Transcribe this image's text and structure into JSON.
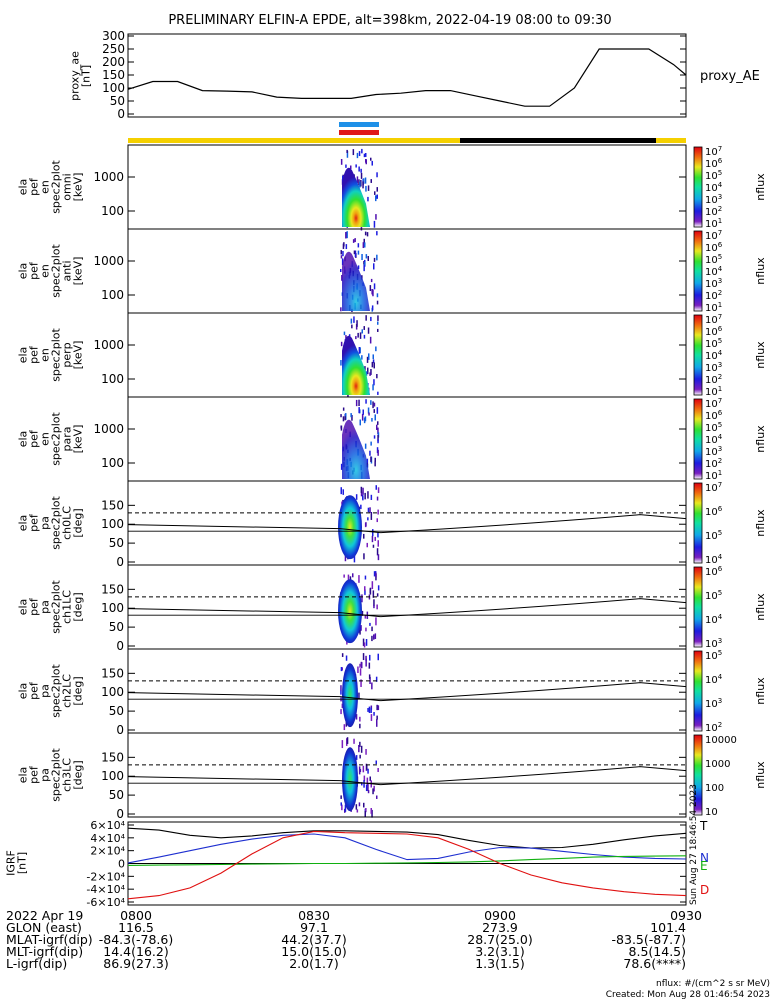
{
  "title": "PRELIMINARY ELFIN-A EPDE, alt=398km, 2022-04-19 08:00 to 09:30",
  "colors": {
    "sunlit": "#f5d000",
    "shadow": "#000000",
    "blue_bar": "#1e90e8",
    "red_bar": "#e01818",
    "trace_black": "#000000",
    "trace_blue": "#1e2fd0",
    "trace_green": "#10b010",
    "trace_red": "#e01010"
  },
  "chart_data": [
    {
      "type": "line",
      "name": "proxy_ae_panel",
      "ylabel": "proxy_ae\n[nT]",
      "label_right": "proxy_AE",
      "ylim": [
        0,
        300
      ],
      "yticks": [
        "0",
        "50",
        "100",
        "150",
        "200",
        "250",
        "300"
      ],
      "x_minutes": [
        0,
        4,
        8,
        12,
        16,
        20,
        24,
        28,
        32,
        36,
        40,
        44,
        48,
        52,
        56,
        60,
        64,
        68,
        72,
        76,
        80,
        84,
        88,
        90
      ],
      "values": [
        95,
        125,
        125,
        90,
        88,
        85,
        65,
        60,
        60,
        60,
        75,
        80,
        90,
        90,
        70,
        50,
        30,
        30,
        100,
        250,
        250,
        250,
        190,
        150
      ]
    },
    {
      "type": "heatmap",
      "name": "en_spec_omni",
      "ylabel": "ela\npef\nen\nspec2plot\nomni\n[keV]",
      "yscale": "log",
      "yticks": [
        "100",
        "1000"
      ],
      "colorbar_label": "nflux",
      "colorbar_ticks": [
        "10^1",
        "10^2",
        "10^3",
        "10^4",
        "10^5",
        "10^6",
        "10^7"
      ]
    },
    {
      "type": "heatmap",
      "name": "en_spec_anti",
      "ylabel": "ela\npef\nen\nspec2plot\nanti\n[keV]",
      "yscale": "log",
      "yticks": [
        "100",
        "1000"
      ],
      "colorbar_label": "nflux",
      "colorbar_ticks": [
        "10^1",
        "10^2",
        "10^3",
        "10^4",
        "10^5",
        "10^6",
        "10^7"
      ]
    },
    {
      "type": "heatmap",
      "name": "en_spec_perp",
      "ylabel": "ela\npef\nen\nspec2plot\nperp\n[keV]",
      "yscale": "log",
      "yticks": [
        "100",
        "1000"
      ],
      "colorbar_label": "nflux",
      "colorbar_ticks": [
        "10^1",
        "10^2",
        "10^3",
        "10^4",
        "10^5",
        "10^6",
        "10^7"
      ]
    },
    {
      "type": "heatmap",
      "name": "en_spec_para",
      "ylabel": "ela\npef\nen\nspec2plot\npara\n[keV]",
      "yscale": "log",
      "yticks": [
        "100",
        "1000"
      ],
      "colorbar_label": "nflux",
      "colorbar_ticks": [
        "10^1",
        "10^2",
        "10^3",
        "10^4",
        "10^5",
        "10^6",
        "10^7"
      ]
    },
    {
      "type": "heatmap",
      "name": "pa_ch0",
      "ylabel": "ela\npef\npa\nspec2plot\nch0LC\n[deg]",
      "ylim": [
        0,
        180
      ],
      "yticks": [
        "0",
        "50",
        "100",
        "150"
      ],
      "colorbar_label": "nflux",
      "colorbar_ticks": [
        "10^4",
        "10^5",
        "10^6",
        "10^7"
      ]
    },
    {
      "type": "heatmap",
      "name": "pa_ch1",
      "ylabel": "ela\npef\npa\nspec2plot\nch1LC\n[deg]",
      "ylim": [
        0,
        180
      ],
      "yticks": [
        "0",
        "50",
        "100",
        "150"
      ],
      "colorbar_label": "nflux",
      "colorbar_ticks": [
        "10^3",
        "10^4",
        "10^5",
        "10^6"
      ]
    },
    {
      "type": "heatmap",
      "name": "pa_ch2",
      "ylabel": "ela\npef\npa\nspec2plot\nch2LC\n[deg]",
      "ylim": [
        0,
        180
      ],
      "yticks": [
        "0",
        "50",
        "100",
        "150"
      ],
      "colorbar_label": "nflux",
      "colorbar_ticks": [
        "10^2",
        "10^3",
        "10^4",
        "10^5"
      ]
    },
    {
      "type": "heatmap",
      "name": "pa_ch3",
      "ylabel": "ela\npef\npa\nspec2plot\nch3LC\n[deg]",
      "ylim": [
        0,
        180
      ],
      "yticks": [
        "0",
        "50",
        "100",
        "150"
      ],
      "colorbar_label": "nflux",
      "colorbar_ticks": [
        "10",
        "100",
        "1000",
        "10000"
      ]
    },
    {
      "type": "line",
      "name": "igrf_panel",
      "ylabel": "IGRF\n[nT]",
      "ylim": [
        -60000,
        60000
      ],
      "yticks": [
        "-6×10⁴",
        "-4×10⁴",
        "-2×10⁴",
        "0",
        "2×10⁴",
        "4×10⁴",
        "6×10⁴"
      ],
      "x_minutes": [
        0,
        5,
        10,
        15,
        20,
        25,
        30,
        35,
        40,
        45,
        50,
        55,
        60,
        65,
        70,
        75,
        80,
        85,
        90
      ],
      "series": [
        {
          "name": "T",
          "values": [
            55000,
            52000,
            44000,
            40000,
            43000,
            48000,
            51000,
            51000,
            50000,
            49000,
            45000,
            36000,
            28000,
            24000,
            25000,
            30000,
            37000,
            43000,
            47000
          ]
        },
        {
          "name": "N",
          "values": [
            1000,
            10000,
            20000,
            30000,
            38000,
            44000,
            46000,
            40000,
            22000,
            6000,
            8000,
            18000,
            25000,
            24000,
            19000,
            14000,
            10000,
            8000,
            7000
          ]
        },
        {
          "name": "E",
          "values": [
            -3000,
            -2500,
            -2000,
            -1500,
            -1000,
            -500,
            0,
            0,
            500,
            1000,
            1500,
            2500,
            4000,
            6000,
            8000,
            10000,
            11000,
            11500,
            12000
          ]
        },
        {
          "name": "D",
          "values": [
            -55000,
            -50000,
            -38000,
            -15000,
            15000,
            40000,
            50000,
            48000,
            47000,
            46000,
            40000,
            22000,
            0,
            -18000,
            -30000,
            -38000,
            -44000,
            -48000,
            -50000
          ]
        }
      ]
    }
  ],
  "time_axis": {
    "date": "2022 Apr 19",
    "ticks": [
      "0800",
      "0830",
      "0900",
      "0930"
    ]
  },
  "orbit_table": {
    "rows": [
      {
        "label": "GLON (east)",
        "values": [
          "116.5",
          "97.1",
          "273.9",
          "101.4"
        ]
      },
      {
        "label": "MLAT-igrf(dip)",
        "values": [
          "-84.3(-78.6)",
          "44.2(37.7)",
          "28.7(25.0)",
          "-83.5(-87.7)"
        ]
      },
      {
        "label": "MLT-igrf(dip)",
        "values": [
          "14.4(16.2)",
          "15.0(15.0)",
          "3.2(3.1)",
          "8.5(14.5)"
        ]
      },
      {
        "label": "L-igrf(dip)",
        "values": [
          "86.9(27.3)",
          "2.0(1.7)",
          "1.3(1.5)",
          "78.6(****)"
        ]
      }
    ]
  },
  "footer": {
    "units": "nflux: #/(cm^2 s sr MeV)",
    "created": "Created: Mon Aug 28 01:46:54 2023",
    "stamp": "Sun Aug 27 18:46:54 2023"
  }
}
